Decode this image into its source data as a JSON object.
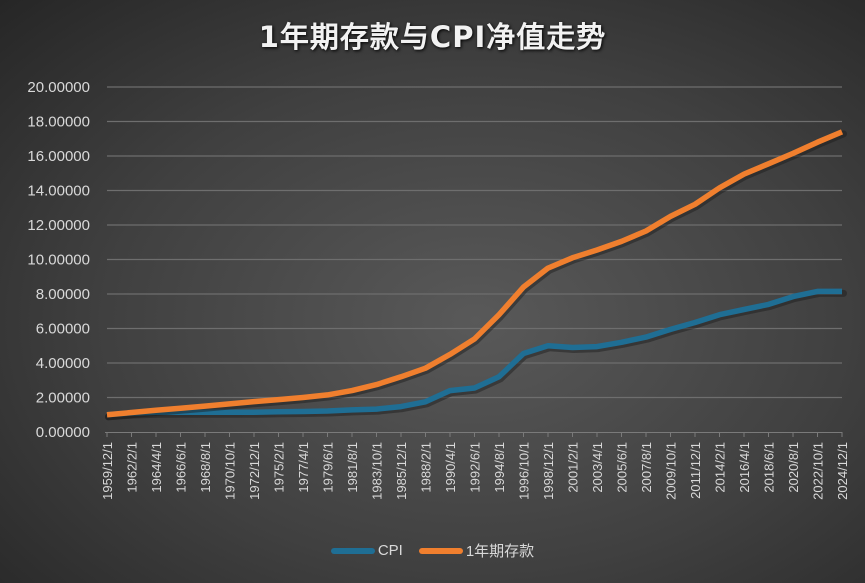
{
  "chart_data": {
    "type": "line",
    "title": "1年期存款与CPI净值走势",
    "xlabel": "",
    "ylabel": "",
    "ylim": [
      0,
      20
    ],
    "yticks": [
      "0.00000",
      "2.00000",
      "4.00000",
      "6.00000",
      "8.00000",
      "10.00000",
      "12.00000",
      "14.00000",
      "16.00000",
      "18.00000",
      "20.00000"
    ],
    "grid": true,
    "legend_position": "bottom",
    "categories": [
      "1959/12/1",
      "1962/2/1",
      "1964/4/1",
      "1966/6/1",
      "1968/8/1",
      "1970/10/1",
      "1972/12/1",
      "1975/2/1",
      "1977/4/1",
      "1979/6/1",
      "1981/8/1",
      "1983/10/1",
      "1985/12/1",
      "1988/2/1",
      "1990/4/1",
      "1992/6/1",
      "1994/8/1",
      "1996/10/1",
      "1998/12/1",
      "2001/2/1",
      "2003/4/1",
      "2005/6/1",
      "2007/8/1",
      "2009/10/1",
      "2011/12/1",
      "2014/2/1",
      "2016/4/1",
      "2018/6/1",
      "2020/8/1",
      "2022/10/1",
      "2024/12/1"
    ],
    "series": [
      {
        "name": "CPI",
        "color": "#1f6e94",
        "values": [
          1.0,
          1.1,
          1.15,
          1.15,
          1.15,
          1.15,
          1.15,
          1.17,
          1.19,
          1.22,
          1.28,
          1.33,
          1.47,
          1.75,
          2.4,
          2.55,
          3.2,
          4.55,
          5.0,
          4.9,
          4.95,
          5.2,
          5.5,
          5.95,
          6.35,
          6.8,
          7.1,
          7.4,
          7.85,
          8.15,
          8.15
        ]
      },
      {
        "name": "1年期存款",
        "color": "#f07f2e",
        "values": [
          1.0,
          1.13,
          1.26,
          1.38,
          1.5,
          1.63,
          1.76,
          1.88,
          2.0,
          2.15,
          2.4,
          2.75,
          3.2,
          3.7,
          4.5,
          5.4,
          6.8,
          8.4,
          9.5,
          10.1,
          10.55,
          11.05,
          11.65,
          12.5,
          13.2,
          14.15,
          14.95,
          15.55,
          16.15,
          16.8,
          17.4
        ]
      }
    ]
  },
  "legend": {
    "cpi_label": "CPI",
    "deposit_label": "1年期存款"
  }
}
